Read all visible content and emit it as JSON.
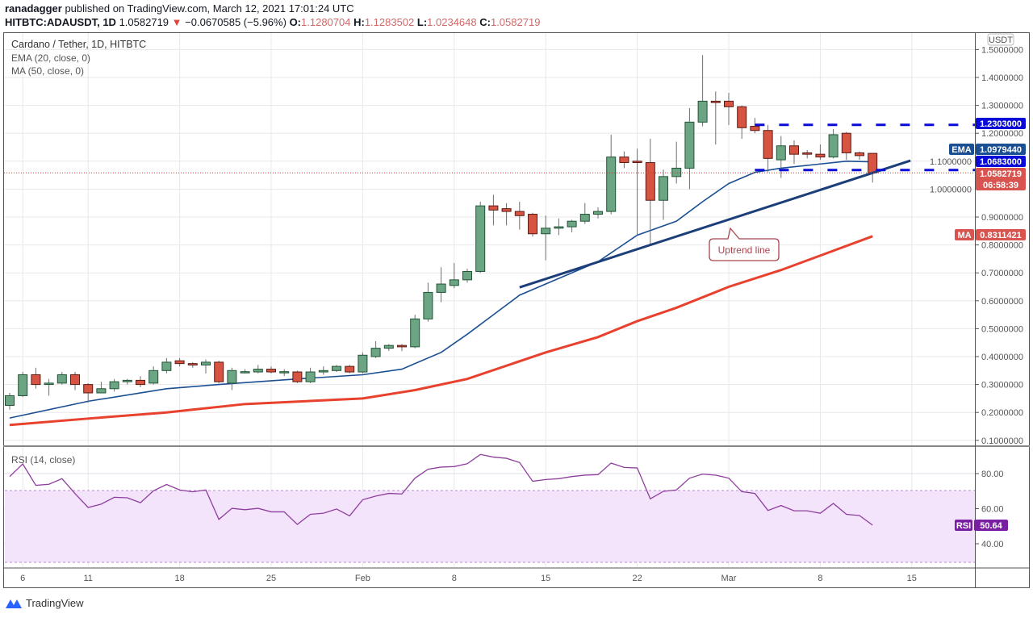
{
  "header": {
    "author": "ranadagger",
    "published": "published on TradingView.com, March 12, 2021 17:01:24 UTC",
    "symbol": "HITBTC:ADAUSDT, 1D",
    "last": "1.0582719",
    "change": "−0.0670585 (−5.96%)",
    "o_label": "O:",
    "o": "1.1280704",
    "h_label": "H:",
    "h": "1.1283502",
    "l_label": "L:",
    "l": "1.0234648",
    "c_label": "C:",
    "c": "1.0582719"
  },
  "legend": {
    "title": "Cardano / Tether, 1D, HITBTC",
    "ema": "EMA (20, close, 0)",
    "ma": "MA (50, close, 0)",
    "rsi": "RSI (14, close)"
  },
  "axis": {
    "currency": "USDT",
    "price_ticks": [
      "1.5000000",
      "1.4000000",
      "1.3000000",
      "1.2000000",
      "1.1000000",
      "1.0000000",
      "0.9000000",
      "0.8000000",
      "0.7000000",
      "0.6000000",
      "0.5000000",
      "0.4000000",
      "0.3000000",
      "0.2000000",
      "0.1000000"
    ],
    "rsi_ticks": [
      "80.00",
      "60.00",
      "40.00"
    ]
  },
  "tags": {
    "resistance": "1.2303000",
    "ema_label": "EMA",
    "ema": "1.0979440",
    "support": "1.0683000",
    "price": "1.0582719",
    "countdown": "06:58:39",
    "ma_label": "MA",
    "ma": "0.8311421",
    "rsi_label": "RSI",
    "rsi": "50.64"
  },
  "annotation": "Uptrend line",
  "footer": {
    "brand": "TradingView"
  },
  "colors": {
    "up": "#6ba583",
    "down": "#d75442",
    "ema": "#1b4f93",
    "ma": "#e8412e",
    "level": "#0a0ad8",
    "rsi": "#8e3f9e",
    "tag_price": "#d9534f",
    "tag_rsi": "#7b1fa2"
  },
  "chart_data": {
    "type": "candlestick",
    "title": "Cardano / Tether, 1D, HITBTC",
    "x_range": [
      "Jan 5",
      "Mar 12"
    ],
    "ylim": [
      0.08,
      1.56
    ],
    "x_ticks": [
      {
        "label": "6",
        "day": 1
      },
      {
        "label": "11",
        "day": 6
      },
      {
        "label": "18",
        "day": 13
      },
      {
        "label": "25",
        "day": 20
      },
      {
        "label": "Feb",
        "day": 27
      },
      {
        "label": "8",
        "day": 34
      },
      {
        "label": "15",
        "day": 41
      },
      {
        "label": "22",
        "day": 48
      },
      {
        "label": "Mar",
        "day": 55
      },
      {
        "label": "8",
        "day": 62
      },
      {
        "label": "15",
        "day": 69
      }
    ],
    "candles_ohlc": [
      [
        0.225,
        0.27,
        0.21,
        0.26
      ],
      [
        0.26,
        0.345,
        0.255,
        0.335
      ],
      [
        0.335,
        0.36,
        0.285,
        0.3
      ],
      [
        0.3,
        0.32,
        0.26,
        0.305
      ],
      [
        0.305,
        0.345,
        0.3,
        0.335
      ],
      [
        0.335,
        0.345,
        0.28,
        0.3
      ],
      [
        0.3,
        0.305,
        0.235,
        0.27
      ],
      [
        0.27,
        0.31,
        0.27,
        0.285
      ],
      [
        0.285,
        0.32,
        0.275,
        0.31
      ],
      [
        0.31,
        0.32,
        0.3,
        0.315
      ],
      [
        0.315,
        0.33,
        0.29,
        0.3
      ],
      [
        0.305,
        0.365,
        0.3,
        0.35
      ],
      [
        0.35,
        0.395,
        0.34,
        0.38
      ],
      [
        0.385,
        0.395,
        0.365,
        0.375
      ],
      [
        0.375,
        0.38,
        0.36,
        0.37
      ],
      [
        0.37,
        0.39,
        0.34,
        0.38
      ],
      [
        0.38,
        0.385,
        0.305,
        0.31
      ],
      [
        0.305,
        0.36,
        0.28,
        0.35
      ],
      [
        0.345,
        0.355,
        0.34,
        0.346
      ],
      [
        0.345,
        0.37,
        0.34,
        0.355
      ],
      [
        0.355,
        0.365,
        0.34,
        0.345
      ],
      [
        0.345,
        0.355,
        0.33,
        0.346
      ],
      [
        0.345,
        0.35,
        0.305,
        0.31
      ],
      [
        0.31,
        0.36,
        0.305,
        0.345
      ],
      [
        0.345,
        0.365,
        0.335,
        0.35
      ],
      [
        0.35,
        0.37,
        0.345,
        0.365
      ],
      [
        0.365,
        0.37,
        0.34,
        0.345
      ],
      [
        0.345,
        0.415,
        0.34,
        0.405
      ],
      [
        0.4,
        0.455,
        0.395,
        0.43
      ],
      [
        0.43,
        0.445,
        0.42,
        0.44
      ],
      [
        0.44,
        0.445,
        0.42,
        0.435
      ],
      [
        0.435,
        0.55,
        0.43,
        0.535
      ],
      [
        0.535,
        0.665,
        0.525,
        0.63
      ],
      [
        0.63,
        0.72,
        0.595,
        0.66
      ],
      [
        0.655,
        0.735,
        0.645,
        0.675
      ],
      [
        0.675,
        0.715,
        0.665,
        0.705
      ],
      [
        0.705,
        0.955,
        0.7,
        0.94
      ],
      [
        0.94,
        0.98,
        0.87,
        0.925
      ],
      [
        0.93,
        0.95,
        0.87,
        0.92
      ],
      [
        0.92,
        0.955,
        0.855,
        0.905
      ],
      [
        0.91,
        0.915,
        0.83,
        0.84
      ],
      [
        0.84,
        0.905,
        0.745,
        0.86
      ],
      [
        0.86,
        0.895,
        0.835,
        0.865
      ],
      [
        0.865,
        0.89,
        0.845,
        0.885
      ],
      [
        0.885,
        0.95,
        0.875,
        0.91
      ],
      [
        0.91,
        0.935,
        0.895,
        0.92
      ],
      [
        0.92,
        1.195,
        0.91,
        1.115
      ],
      [
        1.115,
        1.135,
        1.075,
        1.095
      ],
      [
        1.1,
        1.145,
        0.835,
        1.095
      ],
      [
        1.095,
        1.18,
        0.8,
        0.96
      ],
      [
        0.96,
        1.07,
        0.89,
        1.045
      ],
      [
        1.045,
        1.17,
        1.02,
        1.075
      ],
      [
        1.075,
        1.29,
        1.0,
        1.24
      ],
      [
        1.24,
        1.48,
        1.225,
        1.315
      ],
      [
        1.315,
        1.35,
        1.16,
        1.31
      ],
      [
        1.315,
        1.345,
        1.23,
        1.295
      ],
      [
        1.295,
        1.3,
        1.18,
        1.22
      ],
      [
        1.225,
        1.255,
        1.2,
        1.21
      ],
      [
        1.21,
        1.23,
        1.06,
        1.11
      ],
      [
        1.105,
        1.19,
        1.04,
        1.155
      ],
      [
        1.155,
        1.175,
        1.09,
        1.125
      ],
      [
        1.13,
        1.14,
        1.11,
        1.125
      ],
      [
        1.125,
        1.16,
        1.105,
        1.115
      ],
      [
        1.115,
        1.215,
        1.11,
        1.195
      ],
      [
        1.2,
        1.205,
        1.105,
        1.13
      ],
      [
        1.13,
        1.135,
        1.105,
        1.12
      ],
      [
        1.1280704,
        1.1283502,
        1.0234648,
        1.0582719
      ]
    ],
    "ema20_points": [
      [
        0,
        0.18
      ],
      [
        6,
        0.24
      ],
      [
        12,
        0.285
      ],
      [
        16,
        0.3
      ],
      [
        22,
        0.32
      ],
      [
        27,
        0.335
      ],
      [
        30,
        0.355
      ],
      [
        33,
        0.415
      ],
      [
        35,
        0.48
      ],
      [
        37,
        0.55
      ],
      [
        39,
        0.62
      ],
      [
        41,
        0.66
      ],
      [
        45,
        0.74
      ],
      [
        48,
        0.835
      ],
      [
        51,
        0.885
      ],
      [
        53,
        0.955
      ],
      [
        55,
        1.02
      ],
      [
        57,
        1.06
      ],
      [
        59,
        1.075
      ],
      [
        62,
        1.09
      ],
      [
        64,
        1.1
      ],
      [
        65,
        1.099
      ],
      [
        66,
        1.0979
      ]
    ],
    "ma50_points": [
      [
        0,
        0.155
      ],
      [
        6,
        0.178
      ],
      [
        12,
        0.2
      ],
      [
        18,
        0.23
      ],
      [
        27,
        0.25
      ],
      [
        31,
        0.28
      ],
      [
        35,
        0.32
      ],
      [
        41,
        0.415
      ],
      [
        45,
        0.47
      ],
      [
        48,
        0.527
      ],
      [
        51,
        0.575
      ],
      [
        55,
        0.65
      ],
      [
        59,
        0.71
      ],
      [
        66,
        0.8311
      ]
    ],
    "uptrend_line": [
      [
        39,
        0.648
      ],
      [
        68.9,
        1.102
      ]
    ],
    "horizontal_levels": [
      1.2303,
      1.0683
    ],
    "level_start_day": 57,
    "current_price": 1.0582719,
    "rsi": {
      "ylim": [
        25,
        95
      ],
      "bands": [
        30,
        70
      ],
      "values": [
        78.3,
        85.5,
        73.3,
        73.9,
        77.1,
        68.6,
        60.7,
        62.6,
        66.5,
        66.2,
        63.4,
        70.2,
        73.8,
        70.7,
        69.6,
        70.7,
        53.9,
        60.2,
        59.4,
        60.2,
        58.2,
        58.2,
        51,
        56.8,
        57.4,
        59.8,
        55.9,
        65.1,
        67.2,
        68.7,
        68.4,
        77.4,
        82.5,
        83.7,
        84,
        85.6,
        90.9,
        89.4,
        88.7,
        86.3,
        75.6,
        76.6,
        77.1,
        78.3,
        79.1,
        79.4,
        86,
        83.5,
        83.2,
        65.6,
        69.9,
        70.7,
        77.4,
        79.7,
        79.1,
        77.4,
        69.7,
        68.7,
        59,
        61.8,
        58.8,
        58.8,
        57.4,
        63,
        56.8,
        56.1,
        50.64
      ]
    }
  }
}
